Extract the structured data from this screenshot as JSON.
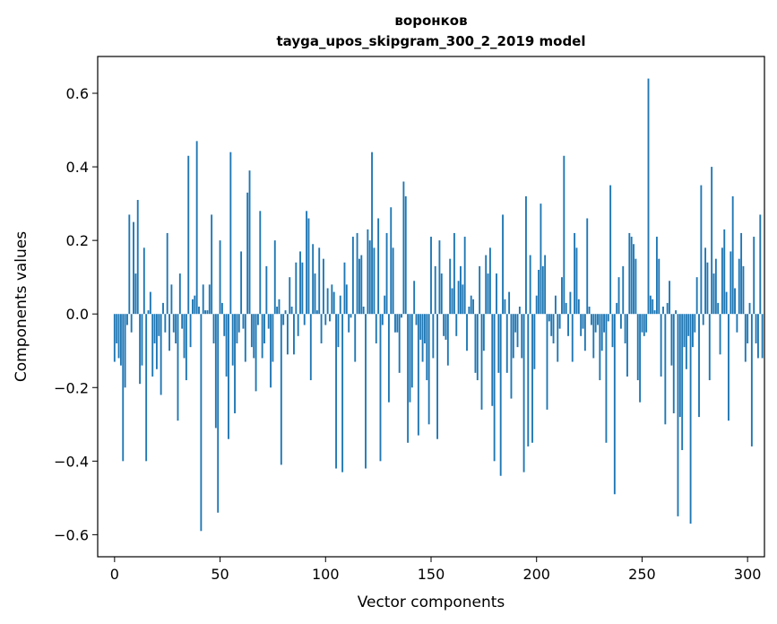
{
  "chart_data": {
    "type": "bar",
    "title": "воронков",
    "subtitle": "tayga_upos_skipgram_300_2_2019 model",
    "xlabel": "Vector components",
    "ylabel": "Components values",
    "xlim": [
      -8,
      308
    ],
    "ylim": [
      -0.66,
      0.7
    ],
    "xticks": [
      0,
      50,
      100,
      150,
      200,
      250,
      300
    ],
    "yticks": [
      -0.6,
      -0.4,
      -0.2,
      0.0,
      0.2,
      0.4,
      0.6
    ],
    "ytick_labels": [
      "−0.6",
      "−0.4",
      "−0.2",
      "0.0",
      "0.2",
      "0.4",
      "0.6"
    ],
    "grid": false,
    "legend": "none",
    "bar_color": "#1f77b4",
    "values": [
      -0.13,
      -0.08,
      -0.12,
      -0.14,
      -0.4,
      -0.2,
      -0.03,
      0.27,
      -0.05,
      0.25,
      0.11,
      0.31,
      -0.19,
      -0.14,
      0.18,
      -0.4,
      0.01,
      0.06,
      -0.17,
      -0.08,
      -0.15,
      -0.06,
      -0.22,
      0.03,
      -0.05,
      0.22,
      -0.1,
      0.08,
      -0.05,
      -0.08,
      -0.29,
      0.11,
      -0.04,
      -0.12,
      -0.18,
      0.43,
      -0.09,
      0.04,
      0.05,
      0.47,
      0.02,
      -0.59,
      0.08,
      0.01,
      0.01,
      0.08,
      0.27,
      -0.08,
      -0.31,
      -0.54,
      0.2,
      0.03,
      -0.06,
      -0.17,
      -0.34,
      0.44,
      -0.14,
      -0.27,
      -0.08,
      -0.05,
      0.17,
      -0.04,
      -0.13,
      0.33,
      0.39,
      -0.09,
      -0.12,
      -0.21,
      -0.03,
      0.28,
      -0.12,
      -0.08,
      0.13,
      -0.04,
      -0.2,
      -0.13,
      0.2,
      0.02,
      0.04,
      -0.41,
      -0.03,
      0.01,
      -0.11,
      0.1,
      0.02,
      -0.11,
      0.14,
      -0.06,
      0.17,
      0.14,
      -0.03,
      0.28,
      0.26,
      -0.18,
      0.19,
      0.11,
      0.01,
      0.18,
      -0.08,
      0.15,
      -0.03,
      0.07,
      -0.02,
      0.08,
      0.06,
      -0.42,
      -0.09,
      0.05,
      -0.43,
      0.14,
      0.08,
      -0.05,
      -0.01,
      0.21,
      -0.13,
      0.22,
      0.15,
      0.16,
      0.02,
      -0.42,
      0.23,
      0.2,
      0.44,
      0.18,
      -0.08,
      0.26,
      -0.4,
      -0.03,
      0.05,
      0.22,
      -0.24,
      0.29,
      0.18,
      -0.05,
      -0.05,
      -0.16,
      -0.01,
      0.36,
      0.32,
      -0.35,
      -0.24,
      -0.2,
      0.09,
      -0.03,
      -0.33,
      -0.07,
      -0.13,
      -0.08,
      -0.18,
      -0.3,
      0.21,
      -0.12,
      0.13,
      -0.34,
      0.2,
      0.11,
      -0.06,
      -0.07,
      -0.14,
      0.15,
      0.07,
      0.22,
      -0.06,
      0.09,
      0.13,
      0.08,
      0.21,
      -0.1,
      0.02,
      0.05,
      0.04,
      -0.16,
      -0.18,
      0.13,
      -0.26,
      -0.1,
      0.16,
      0.11,
      0.18,
      -0.25,
      -0.4,
      0.11,
      -0.16,
      -0.44,
      0.27,
      0.04,
      -0.16,
      0.06,
      -0.23,
      -0.12,
      -0.05,
      -0.09,
      0.02,
      -0.12,
      -0.43,
      0.32,
      -0.36,
      0.16,
      -0.35,
      -0.15,
      0.05,
      0.12,
      0.3,
      0.13,
      0.16,
      -0.26,
      -0.02,
      -0.06,
      -0.08,
      0.05,
      -0.13,
      -0.04,
      0.1,
      0.43,
      0.03,
      -0.06,
      0.06,
      -0.13,
      0.22,
      0.18,
      0.04,
      -0.06,
      -0.04,
      -0.1,
      0.26,
      0.02,
      -0.03,
      -0.12,
      -0.05,
      -0.03,
      -0.18,
      -0.1,
      -0.05,
      -0.35,
      -0.02,
      0.35,
      -0.09,
      -0.49,
      0.03,
      0.1,
      -0.04,
      0.13,
      -0.08,
      -0.17,
      0.22,
      0.21,
      0.19,
      0.15,
      -0.18,
      -0.24,
      -0.05,
      -0.06,
      -0.05,
      0.64,
      0.05,
      0.04,
      0.01,
      0.21,
      0.15,
      -0.17,
      0.02,
      -0.3,
      0.03,
      0.09,
      -0.14,
      -0.27,
      0.01,
      -0.55,
      -0.28,
      -0.37,
      -0.09,
      -0.15,
      -0.06,
      -0.57,
      -0.09,
      -0.05,
      0.1,
      -0.28,
      0.35,
      -0.03,
      0.18,
      0.14,
      -0.18,
      0.4,
      0.11,
      0.15,
      0.03,
      -0.11,
      0.18,
      0.23,
      0.06,
      -0.29,
      0.17,
      0.32,
      0.07,
      -0.05,
      0.15,
      0.22,
      0.13,
      -0.13,
      -0.08,
      0.03,
      -0.36,
      0.21,
      -0.08,
      -0.12,
      0.27,
      -0.12
    ]
  }
}
